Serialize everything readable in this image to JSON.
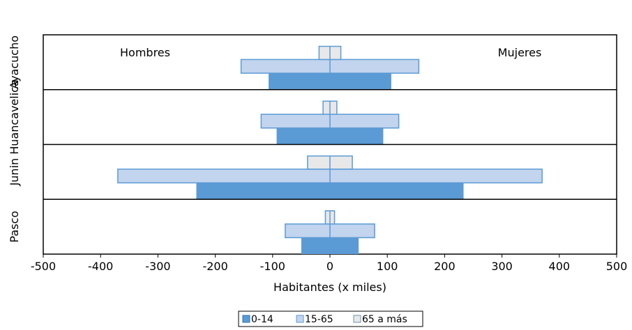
{
  "chart_data": {
    "type": "bar",
    "orientation": "horizontal",
    "xlabel": "Habitantes (x miles)",
    "xlim": [
      -500,
      500
    ],
    "xticks": [
      -500,
      -400,
      -300,
      -200,
      -100,
      0,
      100,
      200,
      300,
      400,
      500
    ],
    "xtick_labels": [
      "-500",
      "-400",
      "-300",
      "-200",
      "-100",
      "0",
      "100",
      "200",
      "300",
      "400",
      "500"
    ],
    "grid": false,
    "legend_position": "bottom-center",
    "annotations": {
      "left": "Hombres",
      "right": "Mujeres"
    },
    "categories": [
      "Ayacucho",
      "Huancavelica",
      "Junin",
      "Pasco"
    ],
    "series": [
      {
        "name": "0-14",
        "color": "#5b9bd5",
        "hombres": [
          -107,
          -93,
          -233,
          -50
        ],
        "mujeres": [
          107,
          93,
          233,
          50
        ]
      },
      {
        "name": "15-65",
        "color": "#c2d4ee",
        "hombres": [
          -155,
          -120,
          -370,
          -78
        ],
        "mujeres": [
          155,
          120,
          370,
          78
        ]
      },
      {
        "name": "65 a más",
        "color": "#e8e8e8",
        "hombres": [
          -19,
          -12,
          -39,
          -8
        ],
        "mujeres": [
          19,
          12,
          39,
          8
        ]
      }
    ]
  }
}
